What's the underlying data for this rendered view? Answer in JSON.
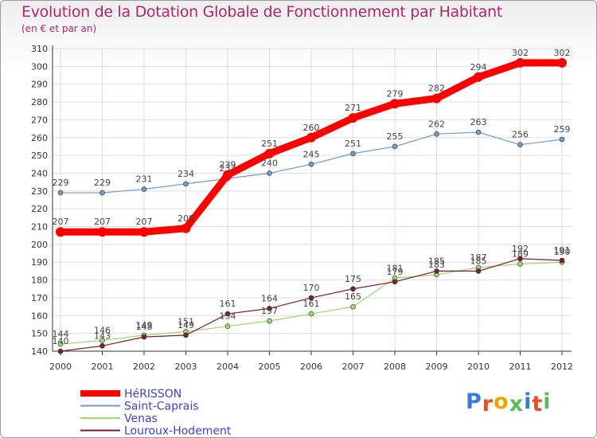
{
  "colors": {
    "title": "#b2256b",
    "axis": "#333333",
    "grid": "#dddddd",
    "legend_text": "#4040c8",
    "logo": [
      "#3a7bd5",
      "#e84c22",
      "#f0a500",
      "#5cb85c",
      "#3a7bd5",
      "#e84c22",
      "#5cb85c"
    ]
  },
  "logo_text": "Proxiti",
  "chart_data": {
    "type": "line",
    "title": "Evolution de la Dotation Globale de Fonctionnement par Habitant",
    "subtitle": "(en € et par an)",
    "x": [
      "2000",
      "2001",
      "2002",
      "2003",
      "2004",
      "2005",
      "2006",
      "2007",
      "2008",
      "2009",
      "2010",
      "2011",
      "2012"
    ],
    "ylim": [
      140,
      310
    ],
    "yticks": [
      140,
      150,
      160,
      170,
      180,
      190,
      200,
      210,
      220,
      230,
      240,
      250,
      260,
      270,
      280,
      290,
      300,
      310
    ],
    "grid": true,
    "legend_position": "bottom-left",
    "series": [
      {
        "name": "HéRISSON",
        "color": "#ff0000",
        "values": [
          207,
          207,
          207,
          209,
          239,
          251,
          260,
          271,
          279,
          282,
          294,
          302,
          302
        ]
      },
      {
        "name": "Saint-Caprais",
        "color": "#6c9cc8",
        "values": [
          229,
          229,
          231,
          234,
          237,
          240,
          245,
          251,
          255,
          262,
          263,
          256,
          259
        ]
      },
      {
        "name": "Venas",
        "color": "#9ad76f",
        "values": [
          144,
          146,
          149,
          151,
          154,
          157,
          161,
          165,
          181,
          183,
          187,
          189,
          190
        ]
      },
      {
        "name": "Louroux-Hodement",
        "color": "#7a1f2b",
        "values": [
          140,
          143,
          148,
          149,
          161,
          164,
          170,
          175,
          179,
          185,
          185,
          192,
          191
        ]
      }
    ],
    "labels": [
      [
        207,
        207,
        207,
        209,
        239,
        251,
        260,
        271,
        279,
        282,
        294,
        302,
        302
      ],
      [
        229,
        229,
        231,
        234,
        237,
        240,
        245,
        251,
        255,
        262,
        263,
        256,
        259
      ],
      [
        144,
        146,
        149,
        151,
        154,
        157,
        161,
        165,
        181,
        183,
        187,
        189,
        190
      ],
      [
        140,
        143,
        148,
        149,
        161,
        164,
        170,
        175,
        179,
        185,
        185,
        192,
        191
      ]
    ]
  }
}
